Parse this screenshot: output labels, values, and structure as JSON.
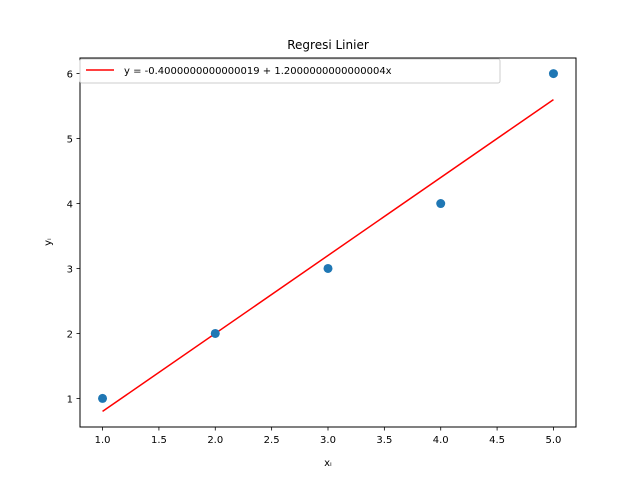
{
  "chart_data": {
    "type": "scatter",
    "title": "Regresi Linier",
    "xlabel": "xᵢ",
    "ylabel": "yᵢ",
    "xlim": [
      0.8,
      5.2
    ],
    "ylim": [
      0.56,
      6.24
    ],
    "xticks": [
      "1.0",
      "1.5",
      "2.0",
      "2.5",
      "3.0",
      "3.5",
      "4.0",
      "4.5",
      "5.0"
    ],
    "yticks": [
      "1",
      "2",
      "3",
      "4",
      "5",
      "6"
    ],
    "grid": false,
    "legend_position": "top-left",
    "series": [
      {
        "kind": "points",
        "color": "#1f77b4",
        "x": [
          1,
          2,
          3,
          4,
          5
        ],
        "y": [
          1,
          2,
          3,
          4,
          6
        ]
      },
      {
        "kind": "line",
        "name": "y = -0.4000000000000019 + 1.2000000000000004x",
        "color": "#ff0000",
        "x": [
          1,
          5
        ],
        "y": [
          0.8,
          5.6
        ]
      }
    ]
  }
}
